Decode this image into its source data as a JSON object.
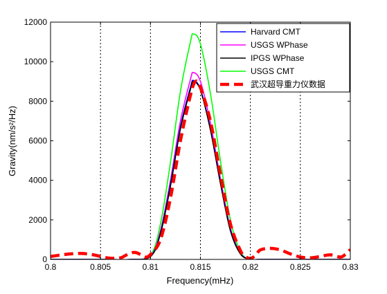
{
  "chart_data": {
    "type": "line",
    "title": "",
    "xlabel": "Frequency(mHz)",
    "ylabel": "Gravity(nm/s²/Hz)",
    "xlim": [
      0.8,
      0.83
    ],
    "ylim": [
      0,
      12000
    ],
    "x_ticks": [
      0.8,
      0.805,
      0.81,
      0.815,
      0.82,
      0.825,
      0.83
    ],
    "x_tick_labels": [
      "0.8",
      "0.805",
      "0.81",
      "0.815",
      "0.82",
      "0.825",
      "0.83"
    ],
    "y_ticks": [
      0,
      2000,
      4000,
      6000,
      8000,
      10000,
      12000
    ],
    "y_tick_labels": [
      "0",
      "2000",
      "4000",
      "6000",
      "8000",
      "10000",
      "12000"
    ],
    "grid": "vertical-dotted",
    "legend_placement": "top-right",
    "series": [
      {
        "name": "Harvard CMT",
        "color": "#0000ff",
        "style": "solid",
        "x": [
          0.8,
          0.805,
          0.808,
          0.81,
          0.811,
          0.812,
          0.813,
          0.814,
          0.8143,
          0.815,
          0.816,
          0.817,
          0.818,
          0.819,
          0.82,
          0.821,
          0.825,
          0.83
        ],
        "values": [
          0,
          0,
          0,
          150,
          1350,
          3800,
          6700,
          8700,
          9050,
          8600,
          6600,
          3900,
          1500,
          300,
          0,
          0,
          0,
          0
        ]
      },
      {
        "name": "USGS WPhase",
        "color": "#ff00ff",
        "style": "solid",
        "x": [
          0.8,
          0.805,
          0.808,
          0.81,
          0.811,
          0.812,
          0.813,
          0.814,
          0.8143,
          0.815,
          0.816,
          0.817,
          0.818,
          0.819,
          0.82,
          0.821,
          0.825,
          0.83
        ],
        "values": [
          0,
          0,
          0,
          170,
          1450,
          4000,
          7000,
          9100,
          9450,
          9000,
          6900,
          4100,
          1600,
          320,
          0,
          0,
          0,
          0
        ]
      },
      {
        "name": "IPGS WPhase",
        "color": "#000000",
        "style": "solid",
        "x": [
          0.8,
          0.805,
          0.808,
          0.81,
          0.811,
          0.812,
          0.813,
          0.814,
          0.8143,
          0.815,
          0.816,
          0.817,
          0.818,
          0.819,
          0.82,
          0.821,
          0.825,
          0.83
        ],
        "values": [
          0,
          0,
          0,
          140,
          1300,
          3700,
          6600,
          8600,
          9000,
          8550,
          6550,
          3850,
          1450,
          280,
          0,
          0,
          0,
          0
        ]
      },
      {
        "name": "USGS CMT",
        "color": "#00ff00",
        "style": "solid",
        "x": [
          0.8,
          0.805,
          0.808,
          0.81,
          0.811,
          0.812,
          0.813,
          0.814,
          0.8143,
          0.815,
          0.816,
          0.817,
          0.818,
          0.819,
          0.82,
          0.821,
          0.825,
          0.83
        ],
        "values": [
          0,
          0,
          0,
          220,
          1800,
          4900,
          8500,
          11000,
          11400,
          10900,
          8400,
          5000,
          2000,
          400,
          0,
          0,
          0,
          0
        ]
      },
      {
        "name": "武汉超导重力仪数据",
        "color": "#ff0000",
        "style": "dashed-thick",
        "x": [
          0.8,
          0.801,
          0.802,
          0.803,
          0.804,
          0.805,
          0.806,
          0.807,
          0.8075,
          0.808,
          0.8085,
          0.809,
          0.8095,
          0.81,
          0.811,
          0.812,
          0.813,
          0.814,
          0.8145,
          0.815,
          0.816,
          0.817,
          0.818,
          0.819,
          0.8195,
          0.82,
          0.8205,
          0.821,
          0.822,
          0.823,
          0.824,
          0.825,
          0.826,
          0.827,
          0.828,
          0.829,
          0.8295,
          0.83
        ],
        "values": [
          150,
          220,
          280,
          300,
          260,
          150,
          60,
          80,
          200,
          320,
          350,
          250,
          120,
          250,
          1000,
          3100,
          6000,
          8300,
          9000,
          8700,
          7000,
          4300,
          1800,
          450,
          150,
          50,
          200,
          480,
          560,
          480,
          280,
          120,
          80,
          150,
          230,
          120,
          250,
          500
        ]
      }
    ]
  }
}
